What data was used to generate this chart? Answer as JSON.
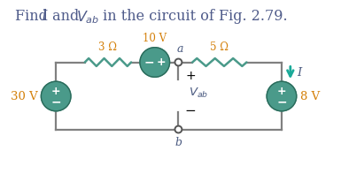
{
  "title_parts": [
    "Find ",
    "I",
    " and ",
    "V",
    "ab",
    " in the circuit of Fig. 2.79."
  ],
  "title_color": "#4f5b8a",
  "title_fontsize": 11.5,
  "bg_color": "#ffffff",
  "wire_color": "#808080",
  "teal_color": "#4a9a8a",
  "resistor_color": "#4a9a8a",
  "orange_color": "#d4800a",
  "arrow_color": "#1aaa99",
  "wire_lw": 1.6,
  "resistor_label_3": "3 Ω",
  "resistor_label_5": "5 Ω",
  "source_30": "30 V",
  "source_10": "10 V",
  "source_8": "8 V",
  "vab_label": "V",
  "vab_sub": "ab",
  "current_label": "I",
  "node_a": "a",
  "node_b": "b",
  "plus_minus_color": "#ffffff",
  "vab_plus_minus_color": "#000000",
  "node_color": "#555555",
  "label_color_italic": "#4a5a80"
}
